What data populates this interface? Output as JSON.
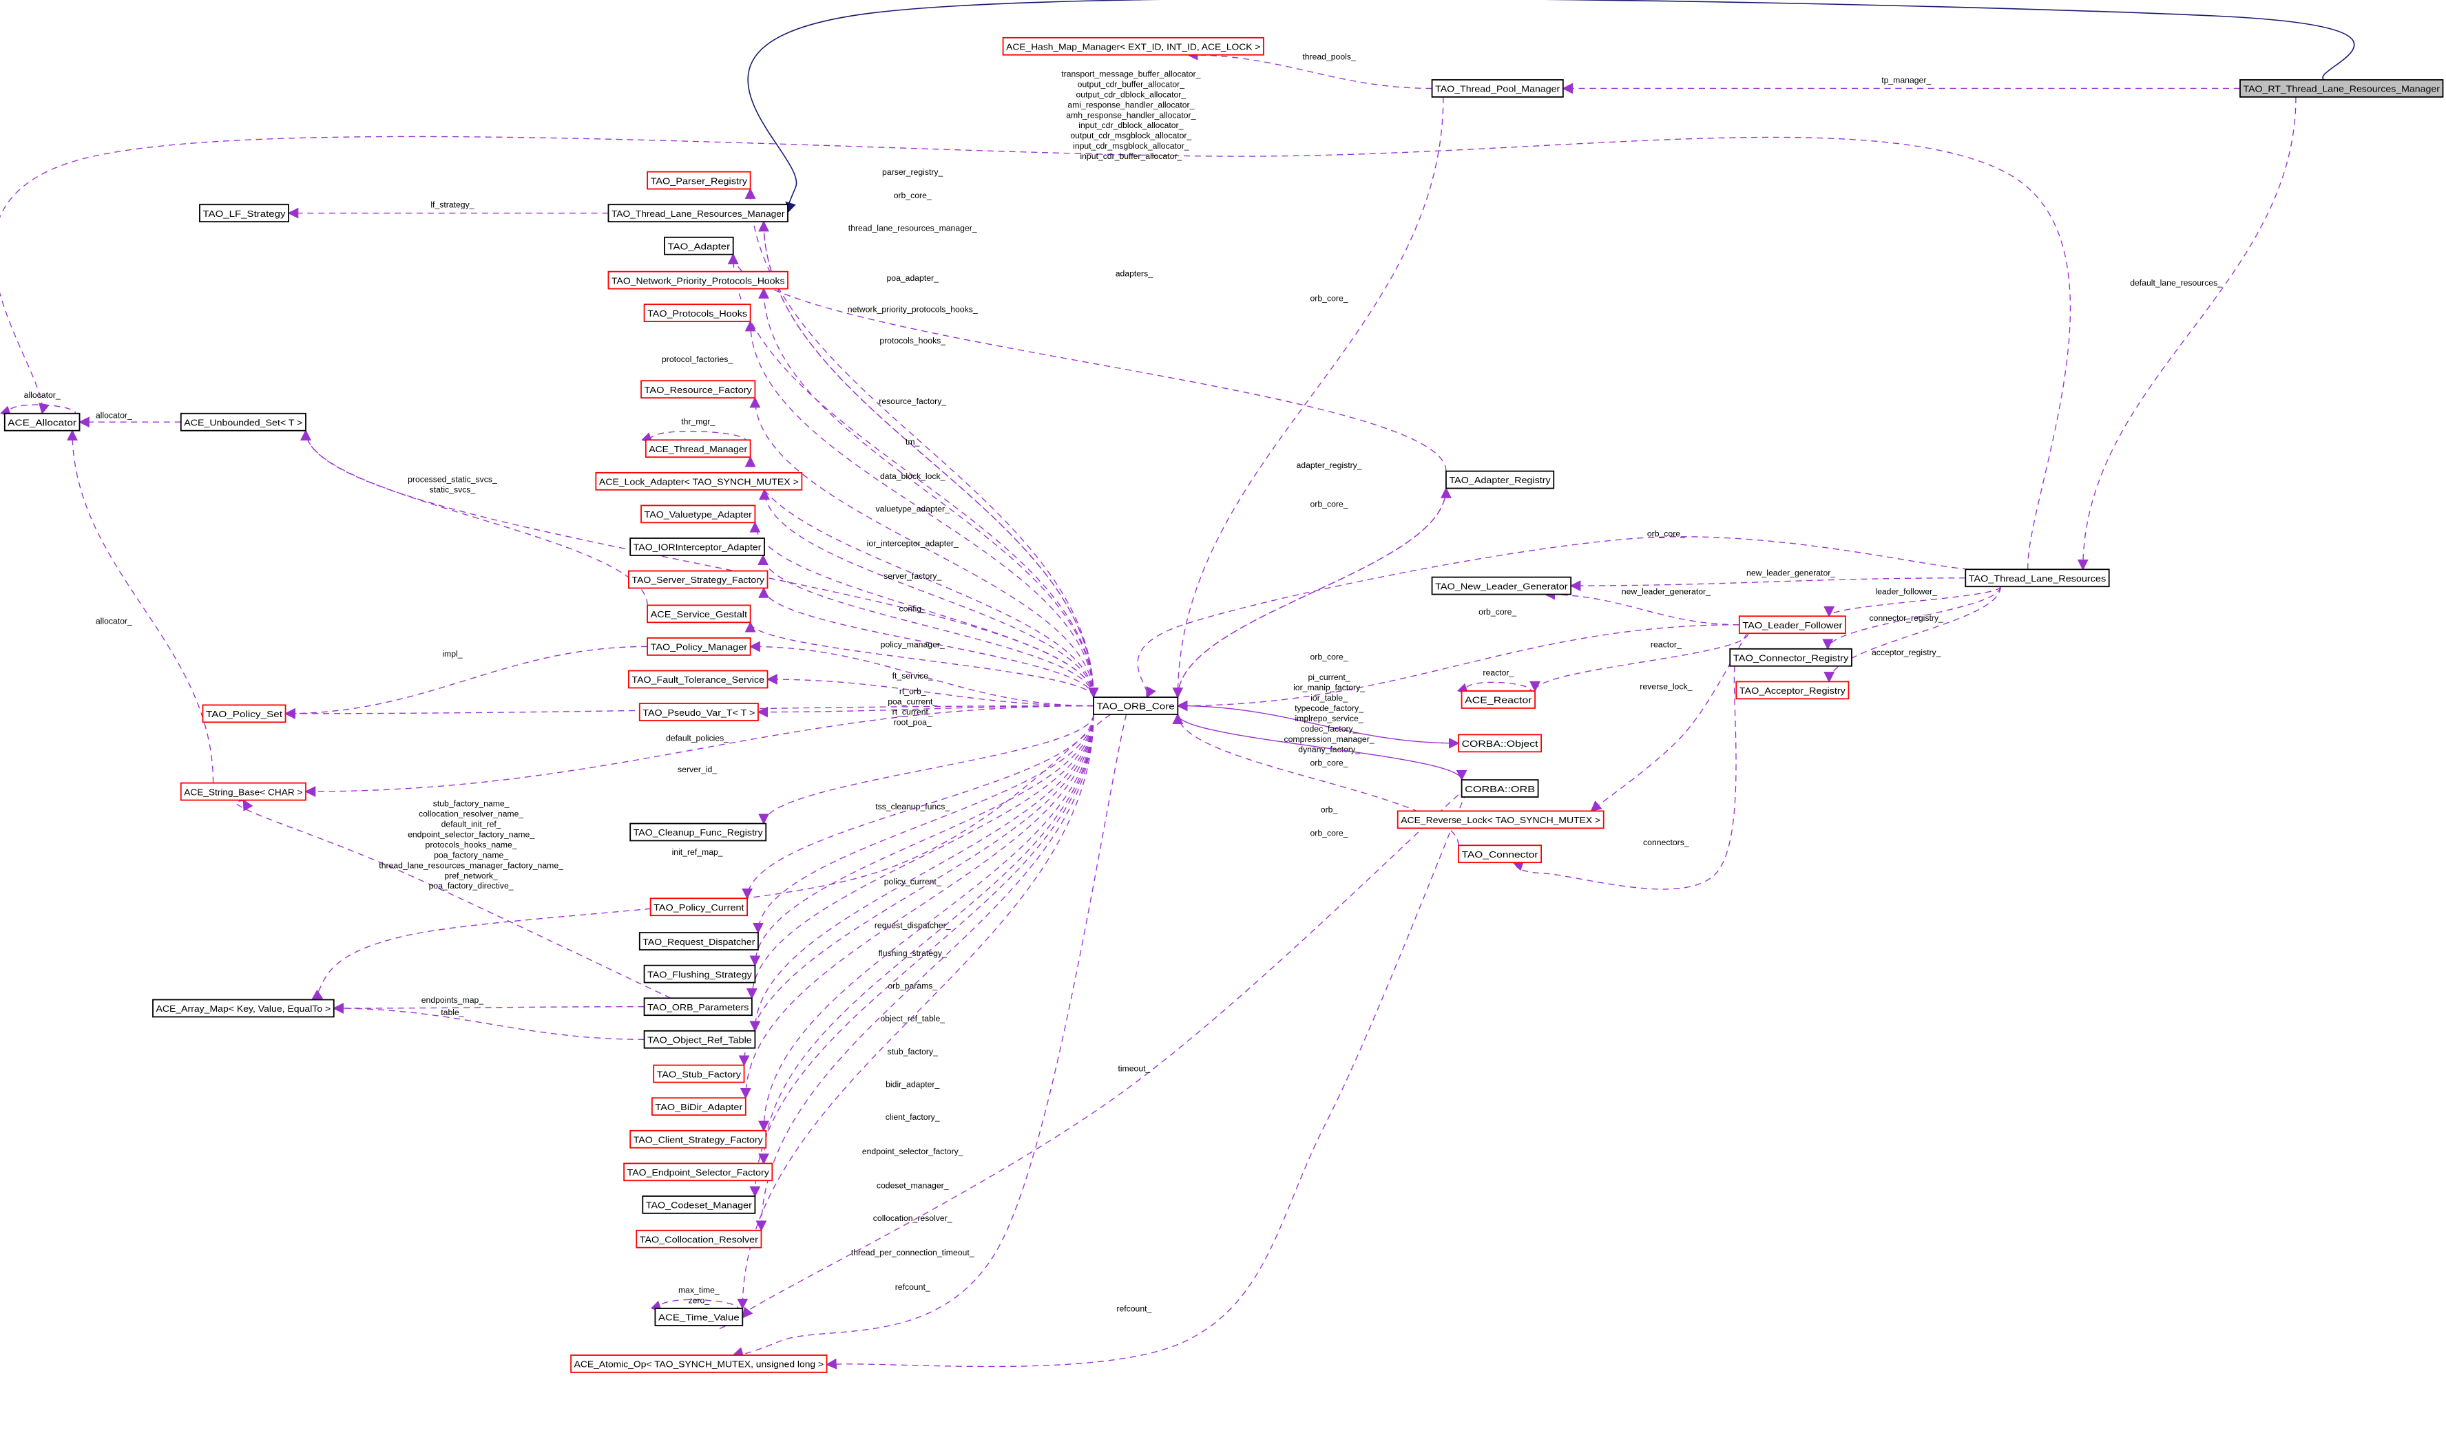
{
  "colors": {
    "member_edge": "#9a32cd",
    "inherit_edge": "#191970",
    "red_border": "#ff0000",
    "black_border": "#000000",
    "root_fill": "#bfbfbf"
  },
  "nodes": [
    {
      "id": "rt_tlrm",
      "label": "TAO_RT_Thread_Lane_Resources_Manager",
      "border": "black",
      "root": true
    },
    {
      "id": "hash_map",
      "label": "ACE_Hash_Map_Manager< EXT_ID, INT_ID, ACE_LOCK >",
      "border": "red"
    },
    {
      "id": "tpm",
      "label": "TAO_Thread_Pool_Manager",
      "border": "black"
    },
    {
      "id": "parser",
      "label": "TAO_Parser_Registry",
      "border": "red"
    },
    {
      "id": "lf_strategy",
      "label": "TAO_LF_Strategy",
      "border": "black"
    },
    {
      "id": "tlrm",
      "label": "TAO_Thread_Lane_Resources_Manager",
      "border": "black"
    },
    {
      "id": "adapter",
      "label": "TAO_Adapter",
      "border": "black"
    },
    {
      "id": "npph",
      "label": "TAO_Network_Priority_Protocols_Hooks",
      "border": "red"
    },
    {
      "id": "ph",
      "label": "TAO_Protocols_Hooks",
      "border": "red"
    },
    {
      "id": "allocator",
      "label": "ACE_Allocator",
      "border": "black"
    },
    {
      "id": "uset",
      "label": "ACE_Unbounded_Set< T >",
      "border": "black"
    },
    {
      "id": "resfac",
      "label": "TAO_Resource_Factory",
      "border": "red"
    },
    {
      "id": "thrmgr",
      "label": "ACE_Thread_Manager",
      "border": "red"
    },
    {
      "id": "lockad",
      "label": "ACE_Lock_Adapter< TAO_SYNCH_MUTEX >",
      "border": "red"
    },
    {
      "id": "valad",
      "label": "TAO_Valuetype_Adapter",
      "border": "red"
    },
    {
      "id": "iorad",
      "label": "TAO_IORInterceptor_Adapter",
      "border": "black"
    },
    {
      "id": "ssf",
      "label": "TAO_Server_Strategy_Factory",
      "border": "red"
    },
    {
      "id": "gestalt",
      "label": "ACE_Service_Gestalt",
      "border": "red"
    },
    {
      "id": "polmgr",
      "label": "TAO_Policy_Manager",
      "border": "red"
    },
    {
      "id": "fts",
      "label": "TAO_Fault_Tolerance_Service",
      "border": "red"
    },
    {
      "id": "polset",
      "label": "TAO_Policy_Set",
      "border": "red"
    },
    {
      "id": "pseudo",
      "label": "TAO_Pseudo_Var_T< T >",
      "border": "red"
    },
    {
      "id": "strbase",
      "label": "ACE_String_Base< CHAR >",
      "border": "red"
    },
    {
      "id": "orbcore",
      "label": "TAO_ORB_Core",
      "border": "black"
    },
    {
      "id": "cleanup",
      "label": "TAO_Cleanup_Func_Registry",
      "border": "black"
    },
    {
      "id": "polcur",
      "label": "TAO_Policy_Current",
      "border": "red"
    },
    {
      "id": "reqdisp",
      "label": "TAO_Request_Dispatcher",
      "border": "black"
    },
    {
      "id": "flush",
      "label": "TAO_Flushing_Strategy",
      "border": "black"
    },
    {
      "id": "arrmap",
      "label": "ACE_Array_Map< Key, Value, EqualTo >",
      "border": "black"
    },
    {
      "id": "orbparams",
      "label": "TAO_ORB_Parameters",
      "border": "black"
    },
    {
      "id": "objref",
      "label": "TAO_Object_Ref_Table",
      "border": "black"
    },
    {
      "id": "stubfac",
      "label": "TAO_Stub_Factory",
      "border": "red"
    },
    {
      "id": "bidir",
      "label": "TAO_BiDir_Adapter",
      "border": "red"
    },
    {
      "id": "csf",
      "label": "TAO_Client_Strategy_Factory",
      "border": "red"
    },
    {
      "id": "esf",
      "label": "TAO_Endpoint_Selector_Factory",
      "border": "red"
    },
    {
      "id": "codeset",
      "label": "TAO_Codeset_Manager",
      "border": "black"
    },
    {
      "id": "colres",
      "label": "TAO_Collocation_Resolver",
      "border": "red"
    },
    {
      "id": "timeval",
      "label": "ACE_Time_Value",
      "border": "black"
    },
    {
      "id": "atomic",
      "label": "ACE_Atomic_Op< TAO_SYNCH_MUTEX, unsigned long >",
      "border": "red"
    },
    {
      "id": "adreg",
      "label": "TAO_Adapter_Registry",
      "border": "black"
    },
    {
      "id": "tlr",
      "label": "TAO_Thread_Lane_Resources",
      "border": "black"
    },
    {
      "id": "nlg",
      "label": "TAO_New_Leader_Generator",
      "border": "black"
    },
    {
      "id": "lf",
      "label": "TAO_Leader_Follower",
      "border": "red"
    },
    {
      "id": "connreg",
      "label": "TAO_Connector_Registry",
      "border": "black"
    },
    {
      "id": "reactor",
      "label": "ACE_Reactor",
      "border": "red"
    },
    {
      "id": "accreg",
      "label": "TAO_Acceptor_Registry",
      "border": "red"
    },
    {
      "id": "cobject",
      "label": "CORBA::Object",
      "border": "red"
    },
    {
      "id": "corb",
      "label": "CORBA::ORB",
      "border": "black"
    },
    {
      "id": "revlock",
      "label": "ACE_Reverse_Lock< TAO_SYNCH_MUTEX >",
      "border": "red"
    },
    {
      "id": "connector",
      "label": "TAO_Connector",
      "border": "red"
    }
  ],
  "edges": [
    {
      "from": "rt_tlrm",
      "to": "tlrm",
      "kind": "inherit",
      "label": ""
    },
    {
      "from": "rt_tlrm",
      "to": "tpm",
      "label": "tp_manager_"
    },
    {
      "from": "rt_tlrm",
      "to": "tlr",
      "label": "default_lane_resources_"
    },
    {
      "from": "tpm",
      "to": "hash_map",
      "label": "thread_pools_"
    },
    {
      "from": "tpm",
      "to": "orbcore",
      "label": "orb_core_"
    },
    {
      "from": "tlr",
      "to": "allocator",
      "label": [
        "transport_message_buffer_allocator_",
        "output_cdr_buffer_allocator_",
        "output_cdr_dblock_allocator_",
        "ami_response_handler_allocator_",
        "amh_response_handler_allocator_",
        "input_cdr_dblock_allocator_",
        "output_cdr_msgblock_allocator_",
        "input_cdr_msgblock_allocator_",
        "input_cdr_buffer_allocator_"
      ]
    },
    {
      "from": "orbcore",
      "to": "parser",
      "label": "parser_registry_"
    },
    {
      "from": "tlrm",
      "to": "lf_strategy",
      "label": "lf_strategy_"
    },
    {
      "from": "tlrm",
      "to": "orbcore",
      "label": "orb_core_"
    },
    {
      "from": "orbcore",
      "to": "tlrm",
      "label": "thread_lane_resources_manager_"
    },
    {
      "from": "orbcore",
      "to": "adapter",
      "label": "poa_adapter_"
    },
    {
      "from": "adreg",
      "to": "adapter",
      "label": "adapters_"
    },
    {
      "from": "orbcore",
      "to": "npph",
      "label": "network_priority_protocols_hooks_"
    },
    {
      "from": "orbcore",
      "to": "ph",
      "label": "protocols_hooks_"
    },
    {
      "from": "orbcore",
      "to": "uset",
      "label": "protocol_factories_"
    },
    {
      "from": "allocator",
      "to": "allocator",
      "label": "allocator_"
    },
    {
      "from": "uset",
      "to": "allocator",
      "label": "allocator_"
    },
    {
      "from": "orbcore",
      "to": "resfac",
      "label": "resource_factory_"
    },
    {
      "from": "thrmgr",
      "to": "thrmgr",
      "label": "thr_mgr_"
    },
    {
      "from": "orbcore",
      "to": "thrmgr",
      "label": "tm_"
    },
    {
      "from": "orbcore",
      "to": "lockad",
      "label": "data_block_lock_"
    },
    {
      "from": "orbcore",
      "to": "valad",
      "label": "valuetype_adapter_"
    },
    {
      "from": "orbcore",
      "to": "iorad",
      "label": "ior_interceptor_adapter_"
    },
    {
      "from": "orbcore",
      "to": "ssf",
      "label": "server_factory_"
    },
    {
      "from": "gestalt",
      "to": "uset",
      "label": [
        "processed_static_svcs_",
        "static_svcs_"
      ]
    },
    {
      "from": "orbcore",
      "to": "gestalt",
      "label": "config_"
    },
    {
      "from": "orbcore",
      "to": "polmgr",
      "label": "policy_manager_"
    },
    {
      "from": "polmgr",
      "to": "polset",
      "label": "impl_"
    },
    {
      "from": "orbcore",
      "to": "fts",
      "label": "ft_service_"
    },
    {
      "from": "orbcore",
      "to": "pseudo",
      "label": [
        "rt_orb_",
        "poa_current_",
        "rt_current_",
        "root_poa_"
      ]
    },
    {
      "from": "orbcore",
      "to": "polset",
      "label": "default_policies_"
    },
    {
      "from": "strbase",
      "to": "allocator",
      "label": "allocator_"
    },
    {
      "from": "orbcore",
      "to": "strbase",
      "label": "server_id_"
    },
    {
      "from": "orbparams",
      "to": "strbase",
      "label": [
        "stub_factory_name_",
        "collocation_resolver_name_",
        "default_init_ref_",
        "endpoint_selector_factory_name_",
        "protocols_hooks_name_",
        "poa_factory_name_",
        "thread_lane_resources_manager_factory_name_",
        "pref_network_",
        "poa_factory_directive_"
      ]
    },
    {
      "from": "orbcore",
      "to": "cleanup",
      "label": "tss_cleanup_funcs_"
    },
    {
      "from": "orbcore",
      "to": "arrmap",
      "label": "init_ref_map_"
    },
    {
      "from": "orbcore",
      "to": "polcur",
      "label": "policy_current_"
    },
    {
      "from": "orbcore",
      "to": "reqdisp",
      "label": "request_dispatcher_"
    },
    {
      "from": "orbcore",
      "to": "flush",
      "label": "flushing_strategy_"
    },
    {
      "from": "orbcore",
      "to": "orbparams",
      "label": "orb_params_"
    },
    {
      "from": "orbparams",
      "to": "arrmap",
      "label": "endpoints_map_"
    },
    {
      "from": "objref",
      "to": "arrmap",
      "label": "table_"
    },
    {
      "from": "orbcore",
      "to": "objref",
      "label": "object_ref_table_"
    },
    {
      "from": "orbcore",
      "to": "stubfac",
      "label": "stub_factory_"
    },
    {
      "from": "orbcore",
      "to": "bidir",
      "label": "bidir_adapter_"
    },
    {
      "from": "orbcore",
      "to": "csf",
      "label": "client_factory_"
    },
    {
      "from": "orbcore",
      "to": "esf",
      "label": "endpoint_selector_factory_"
    },
    {
      "from": "orbcore",
      "to": "codeset",
      "label": "codeset_manager_"
    },
    {
      "from": "orbcore",
      "to": "colres",
      "label": "collocation_resolver_"
    },
    {
      "from": "orbcore",
      "to": "timeval",
      "label": "thread_per_connection_timeout_"
    },
    {
      "from": "timeval",
      "to": "timeval",
      "label": [
        "max_time_",
        "zero_"
      ]
    },
    {
      "from": "orbcore",
      "to": "atomic",
      "label": "refcount_"
    },
    {
      "from": "corb",
      "to": "timeval",
      "label": "timeout_"
    },
    {
      "from": "corb",
      "to": "atomic",
      "label": "refcount_"
    },
    {
      "from": "orbcore",
      "to": "adreg",
      "label": "adapter_registry_"
    },
    {
      "from": "adreg",
      "to": "orbcore",
      "label": "orb_core_"
    },
    {
      "from": "tlr",
      "to": "orbcore",
      "label": "orb_core_"
    },
    {
      "from": "tlr",
      "to": "nlg",
      "label": "new_leader_generator_"
    },
    {
      "from": "lf",
      "to": "nlg",
      "label": "new_leader_generator_"
    },
    {
      "from": "tlr",
      "to": "lf",
      "label": "leader_follower_"
    },
    {
      "from": "lf",
      "to": "orbcore",
      "label": "orb_core_"
    },
    {
      "from": "tlr",
      "to": "connreg",
      "label": "connector_registry_"
    },
    {
      "from": "tlr",
      "to": "accreg",
      "label": "acceptor_registry_"
    },
    {
      "from": "lf",
      "to": "reactor",
      "label": "reactor_"
    },
    {
      "from": "reactor",
      "to": "reactor",
      "label": "reactor_"
    },
    {
      "from": "lf",
      "to": "revlock",
      "label": "reverse_lock_"
    },
    {
      "from": "connreg",
      "to": "connector",
      "label": "connectors_"
    },
    {
      "from": "cobject",
      "to": "orbcore",
      "label": "orb_core_"
    },
    {
      "from": "orbcore",
      "to": "cobject",
      "label": [
        "pi_current_",
        "ior_manip_factory_",
        "ior_table_",
        "typecode_factory_",
        "implrepo_service_",
        "codec_factory_",
        "compression_manager_",
        "dynany_factory_"
      ]
    },
    {
      "from": "corb",
      "to": "orbcore",
      "label": "orb_core_"
    },
    {
      "from": "orbcore",
      "to": "corb",
      "label": "orb_"
    },
    {
      "from": "connector",
      "to": "orbcore",
      "label": "orb_core_"
    }
  ]
}
